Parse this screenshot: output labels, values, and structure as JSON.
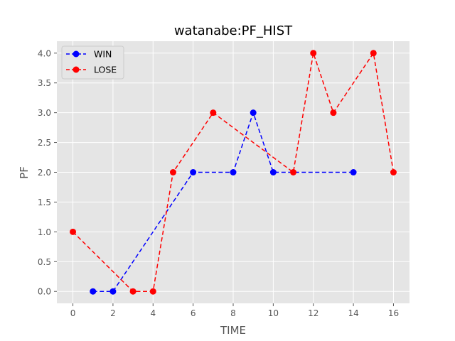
{
  "chart_data": {
    "type": "line",
    "title": "watanabe:PF_HIST",
    "xlabel": "TIME",
    "ylabel": "PF",
    "xlim": [
      -0.8,
      16.8
    ],
    "ylim": [
      -0.2,
      4.2
    ],
    "xticks": [
      0,
      2,
      4,
      6,
      8,
      10,
      12,
      14,
      16
    ],
    "yticks": [
      0.0,
      0.5,
      1.0,
      1.5,
      2.0,
      2.5,
      3.0,
      3.5,
      4.0
    ],
    "xtick_labels": [
      "0",
      "2",
      "4",
      "6",
      "8",
      "10",
      "12",
      "14",
      "16"
    ],
    "ytick_labels": [
      "0.0",
      "0.5",
      "1.0",
      "1.5",
      "2.0",
      "2.5",
      "3.0",
      "3.5",
      "4.0"
    ],
    "grid": true,
    "legend_position": "top-left",
    "series": [
      {
        "name": "WIN",
        "color": "#0000ff",
        "linestyle": "dashed",
        "marker": "circle",
        "x": [
          1,
          2,
          6,
          8,
          9,
          10,
          14
        ],
        "y": [
          0,
          0,
          2,
          2,
          3,
          2,
          2
        ]
      },
      {
        "name": "LOSE",
        "color": "#ff0000",
        "linestyle": "dashed",
        "marker": "circle",
        "x": [
          0,
          3,
          4,
          5,
          7,
          11,
          12,
          13,
          15,
          16
        ],
        "y": [
          1,
          0,
          0,
          2,
          3,
          2,
          4,
          3,
          4,
          2
        ]
      }
    ]
  },
  "style": {
    "plot_background": "#e5e5e5",
    "grid_color": "#ffffff"
  }
}
